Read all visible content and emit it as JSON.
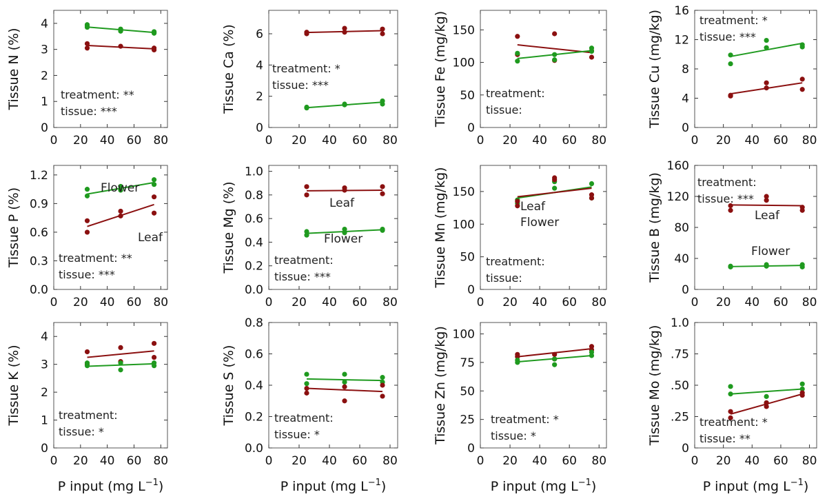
{
  "colors": {
    "flower": "#1f9a1f",
    "leaf": "#8b1010"
  },
  "x_label": {
    "main": "P input (mg L",
    "sup": "−1",
    "end": ")"
  },
  "chart_data": [
    {
      "type": "scatter",
      "ylabel": "Tissue N (%)",
      "xlim": [
        0,
        80
      ],
      "xticks": [
        0,
        20,
        40,
        60,
        80
      ],
      "ylim": [
        0,
        4.5
      ],
      "yticks": [
        "0",
        "1",
        "2",
        "3",
        "4"
      ],
      "ytick_values": [
        0,
        1,
        2,
        3,
        4
      ],
      "annotation": [
        "treatment: **",
        "tissue: ***"
      ],
      "series": [
        {
          "tissue": "flower",
          "x": [
            25,
            25,
            25,
            50,
            50,
            50,
            75,
            75,
            75
          ],
          "y": [
            3.85,
            3.9,
            3.95,
            3.7,
            3.75,
            3.78,
            3.62,
            3.65,
            3.68
          ],
          "fit": [
            3.86,
            3.65
          ]
        },
        {
          "tissue": "leaf",
          "x": [
            25,
            25,
            50,
            75,
            75
          ],
          "y": [
            3.05,
            3.22,
            3.12,
            2.98,
            3.05
          ],
          "fit": [
            3.15,
            3.02
          ]
        }
      ]
    },
    {
      "type": "scatter",
      "ylabel": "Tissue Ca (%)",
      "xlim": [
        0,
        80
      ],
      "xticks": [
        0,
        20,
        40,
        60,
        80
      ],
      "ylim": [
        0,
        7.5
      ],
      "yticks": [
        "0",
        "2",
        "4",
        "6"
      ],
      "ytick_values": [
        0,
        2,
        4,
        6
      ],
      "annotation": [
        "treatment: *",
        "tissue: ***"
      ],
      "series": [
        {
          "tissue": "leaf",
          "x": [
            25,
            25,
            50,
            50,
            75,
            75
          ],
          "y": [
            6.0,
            6.1,
            6.1,
            6.35,
            6.0,
            6.3
          ],
          "fit": [
            6.08,
            6.2
          ]
        },
        {
          "tissue": "flower",
          "x": [
            25,
            25,
            50,
            50,
            75,
            75
          ],
          "y": [
            1.25,
            1.3,
            1.45,
            1.5,
            1.5,
            1.7
          ],
          "fit": [
            1.27,
            1.62
          ]
        }
      ]
    },
    {
      "type": "scatter",
      "ylabel": "Tissue Fe (mg/kg)",
      "xlim": [
        0,
        80
      ],
      "xticks": [
        0,
        20,
        40,
        60,
        80
      ],
      "ylim": [
        0,
        180
      ],
      "yticks": [
        "0",
        "50",
        "100",
        "150"
      ],
      "ytick_values": [
        0,
        50,
        100,
        150
      ],
      "annotation": [
        "treatment:",
        "tissue:"
      ],
      "series": [
        {
          "tissue": "leaf",
          "x": [
            25,
            25,
            50,
            50,
            75,
            75
          ],
          "y": [
            140,
            112,
            144,
            103,
            108,
            118
          ],
          "fit": [
            127,
            115
          ]
        },
        {
          "tissue": "flower",
          "x": [
            25,
            25,
            50,
            50,
            75,
            75
          ],
          "y": [
            102,
            114,
            104,
            112,
            117,
            122
          ],
          "fit": [
            106,
            118
          ]
        }
      ]
    },
    {
      "type": "scatter",
      "ylabel": "Tissue Cu (mg/kg)",
      "xlim": [
        0,
        80
      ],
      "xticks": [
        0,
        20,
        40,
        60,
        80
      ],
      "ylim": [
        0,
        16
      ],
      "yticks": [
        "0",
        "4",
        "8",
        "12",
        "16"
      ],
      "ytick_values": [
        0,
        4,
        8,
        12,
        16
      ],
      "annotation": [
        "treatment: *",
        "tissue: ***"
      ],
      "series": [
        {
          "tissue": "flower",
          "x": [
            25,
            25,
            50,
            50,
            75,
            75
          ],
          "y": [
            8.7,
            9.9,
            10.9,
            11.9,
            11.0,
            11.3
          ],
          "fit": [
            9.7,
            11.5
          ]
        },
        {
          "tissue": "leaf",
          "x": [
            25,
            25,
            50,
            50,
            75,
            75
          ],
          "y": [
            4.3,
            4.4,
            5.4,
            6.1,
            5.2,
            6.6
          ],
          "fit": [
            4.6,
            6.1
          ]
        }
      ]
    },
    {
      "type": "scatter",
      "ylabel": "Tissue P (%)",
      "xlim": [
        0,
        80
      ],
      "xticks": [
        0,
        20,
        40,
        60,
        80
      ],
      "ylim": [
        0,
        1.3
      ],
      "yticks": [
        "0.0",
        "0.3",
        "0.6",
        "0.9",
        "1.2"
      ],
      "ytick_values": [
        0,
        0.3,
        0.6,
        0.9,
        1.2
      ],
      "annotation": [
        "treatment: **",
        "tissue: ***"
      ],
      "series_labels": [
        "Flower",
        "Leaf"
      ],
      "series": [
        {
          "tissue": "flower",
          "x": [
            25,
            25,
            50,
            50,
            75,
            75
          ],
          "y": [
            0.98,
            1.05,
            1.04,
            1.08,
            1.1,
            1.15
          ],
          "fit": [
            1.0,
            1.12
          ]
        },
        {
          "tissue": "leaf",
          "x": [
            25,
            25,
            50,
            50,
            75,
            75
          ],
          "y": [
            0.6,
            0.72,
            0.77,
            0.82,
            0.8,
            0.97
          ],
          "fit": [
            0.66,
            0.89
          ]
        }
      ]
    },
    {
      "type": "scatter",
      "ylabel": "Tissue Mg (%)",
      "xlim": [
        0,
        80
      ],
      "xticks": [
        0,
        20,
        40,
        60,
        80
      ],
      "ylim": [
        0,
        1.05
      ],
      "yticks": [
        "0.0",
        "0.2",
        "0.4",
        "0.6",
        "0.8",
        "1.0"
      ],
      "ytick_values": [
        0,
        0.2,
        0.4,
        0.6,
        0.8,
        1.0
      ],
      "annotation": [
        "treatment:",
        "tissue: ***"
      ],
      "series_labels": [
        "Flower",
        "Leaf"
      ],
      "series": [
        {
          "tissue": "flower",
          "x": [
            25,
            25,
            50,
            50,
            75,
            75
          ],
          "y": [
            0.46,
            0.49,
            0.48,
            0.51,
            0.5,
            0.51
          ],
          "fit": [
            0.475,
            0.505
          ]
        },
        {
          "tissue": "leaf",
          "x": [
            25,
            25,
            50,
            50,
            75,
            75
          ],
          "y": [
            0.8,
            0.87,
            0.84,
            0.86,
            0.81,
            0.87
          ],
          "fit": [
            0.835,
            0.84
          ]
        }
      ]
    },
    {
      "type": "scatter",
      "ylabel": "Tissue Mn (mg/kg)",
      "xlim": [
        0,
        80
      ],
      "xticks": [
        0,
        20,
        40,
        60,
        80
      ],
      "ylim": [
        0,
        190
      ],
      "yticks": [
        "0",
        "50",
        "100",
        "150"
      ],
      "ytick_values": [
        0,
        50,
        100,
        150
      ],
      "annotation": [
        "treatment:",
        "tissue:"
      ],
      "series_labels": [
        "Flower",
        "Leaf"
      ],
      "series": [
        {
          "tissue": "flower",
          "x": [
            25,
            25,
            50,
            50,
            75,
            75
          ],
          "y": [
            132,
            137,
            155,
            165,
            140,
            162
          ],
          "fit": [
            140,
            157
          ]
        },
        {
          "tissue": "leaf",
          "x": [
            25,
            25,
            50,
            50,
            75,
            75
          ],
          "y": [
            128,
            135,
            168,
            171,
            140,
            145
          ],
          "fit": [
            142,
            155
          ]
        }
      ]
    },
    {
      "type": "scatter",
      "ylabel": "Tissue B (mg/kg)",
      "xlim": [
        0,
        80
      ],
      "xticks": [
        0,
        20,
        40,
        60,
        80
      ],
      "ylim": [
        0,
        160
      ],
      "yticks": [
        "0",
        "40",
        "80",
        "120",
        "160"
      ],
      "ytick_values": [
        0,
        40,
        80,
        120,
        160
      ],
      "annotation": [
        "treatment:",
        "tissue: ***"
      ],
      "series_labels": [
        "Flower",
        "Leaf"
      ],
      "series": [
        {
          "tissue": "flower",
          "x": [
            25,
            25,
            50,
            50,
            75,
            75
          ],
          "y": [
            29,
            30,
            30,
            32,
            29,
            32
          ],
          "fit": [
            29.5,
            31
          ]
        },
        {
          "tissue": "leaf",
          "x": [
            25,
            25,
            50,
            50,
            75,
            75
          ],
          "y": [
            102,
            108,
            115,
            120,
            102,
            106
          ],
          "fit": [
            109,
            108
          ]
        }
      ]
    },
    {
      "type": "scatter",
      "ylabel": "Tissue K (%)",
      "xlim": [
        0,
        80
      ],
      "xticks": [
        0,
        20,
        40,
        60,
        80
      ],
      "ylim": [
        0,
        4.5
      ],
      "yticks": [
        "0",
        "1",
        "2",
        "3",
        "4"
      ],
      "ytick_values": [
        0,
        1,
        2,
        3,
        4
      ],
      "annotation": [
        "treatment:",
        "tissue: *"
      ],
      "series": [
        {
          "tissue": "leaf",
          "x": [
            25,
            25,
            50,
            50,
            75,
            75
          ],
          "y": [
            3.0,
            3.45,
            3.1,
            3.6,
            3.25,
            3.75
          ],
          "fit": [
            3.25,
            3.48
          ]
        },
        {
          "tissue": "flower",
          "x": [
            25,
            25,
            50,
            50,
            75,
            75
          ],
          "y": [
            2.95,
            3.05,
            2.8,
            3.05,
            2.95,
            3.05
          ],
          "fit": [
            2.93,
            3.02
          ]
        }
      ]
    },
    {
      "type": "scatter",
      "ylabel": "Tissue S (%)",
      "xlim": [
        0,
        80
      ],
      "xticks": [
        0,
        20,
        40,
        60,
        80
      ],
      "ylim": [
        0,
        0.8
      ],
      "yticks": [
        "0.0",
        "0.2",
        "0.4",
        "0.6",
        "0.8"
      ],
      "ytick_values": [
        0,
        0.2,
        0.4,
        0.6,
        0.8
      ],
      "annotation": [
        "treatment:",
        "tissue: *"
      ],
      "series": [
        {
          "tissue": "flower",
          "x": [
            25,
            25,
            50,
            50,
            75,
            75
          ],
          "y": [
            0.41,
            0.47,
            0.42,
            0.47,
            0.42,
            0.45
          ],
          "fit": [
            0.44,
            0.43
          ]
        },
        {
          "tissue": "leaf",
          "x": [
            25,
            25,
            50,
            50,
            75,
            75
          ],
          "y": [
            0.35,
            0.38,
            0.3,
            0.39,
            0.33,
            0.4
          ],
          "fit": [
            0.38,
            0.36
          ]
        }
      ]
    },
    {
      "type": "scatter",
      "ylabel": "Tissue Zn (mg/kg)",
      "xlim": [
        0,
        80
      ],
      "xticks": [
        0,
        20,
        40,
        60,
        80
      ],
      "ylim": [
        0,
        110
      ],
      "yticks": [
        "0",
        "25",
        "50",
        "75",
        "100"
      ],
      "ytick_values": [
        0,
        25,
        50,
        75,
        100
      ],
      "annotation": [
        "treatment: *",
        "tissue: *"
      ],
      "series": [
        {
          "tissue": "leaf",
          "x": [
            25,
            25,
            50,
            50,
            75,
            75
          ],
          "y": [
            80,
            82,
            78,
            82,
            86,
            89
          ],
          "fit": [
            80,
            87
          ]
        },
        {
          "tissue": "flower",
          "x": [
            25,
            25,
            50,
            50,
            75,
            75
          ],
          "y": [
            75,
            77,
            73,
            78,
            81,
            84
          ],
          "fit": [
            75.5,
            81
          ]
        }
      ]
    },
    {
      "type": "scatter",
      "ylabel": "Tissue Mo (mg/kg)",
      "xlim": [
        0,
        80
      ],
      "xticks": [
        0,
        20,
        40,
        60,
        80
      ],
      "ylim": [
        0,
        1.0
      ],
      "yticks": [
        "0",
        ".25",
        ".50",
        ".75",
        "1.0"
      ],
      "ytick_values": [
        0,
        0.25,
        0.5,
        0.75,
        1.0
      ],
      "annotation": [
        "treatment: *",
        "tissue: **"
      ],
      "series": [
        {
          "tissue": "flower",
          "x": [
            25,
            25,
            50,
            50,
            75,
            75
          ],
          "y": [
            0.43,
            0.49,
            0.36,
            0.41,
            0.47,
            0.51
          ],
          "fit": [
            0.43,
            0.47
          ]
        },
        {
          "tissue": "leaf",
          "x": [
            25,
            25,
            50,
            50,
            75,
            75
          ],
          "y": [
            0.24,
            0.29,
            0.33,
            0.36,
            0.42,
            0.44
          ],
          "fit": [
            0.27,
            0.43
          ]
        }
      ]
    }
  ]
}
